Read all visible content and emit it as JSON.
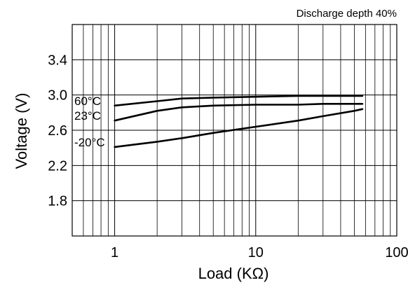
{
  "chart_data": {
    "type": "line",
    "title": "",
    "annotation": "Discharge depth 40%",
    "xlabel": "Load (KΩ)",
    "ylabel": "Voltage (V)",
    "x_scale": "log",
    "xlim": [
      0.5,
      100
    ],
    "ylim": [
      1.4,
      3.8
    ],
    "x_ticks": [
      {
        "value": 1,
        "label": "1"
      },
      {
        "value": 10,
        "label": "10"
      },
      {
        "value": 100,
        "label": "100"
      }
    ],
    "y_ticks": [
      {
        "value": 1.8,
        "label": "1.8"
      },
      {
        "value": 2.2,
        "label": "2.2"
      },
      {
        "value": 2.6,
        "label": "2.6"
      },
      {
        "value": 3.0,
        "label": "3.0"
      },
      {
        "value": 3.4,
        "label": "3.4"
      }
    ],
    "grid": true,
    "legend": "none",
    "series": [
      {
        "name": "60°C",
        "x": [
          1,
          2,
          3,
          5,
          10,
          20,
          30,
          50,
          57
        ],
        "y": [
          2.88,
          2.93,
          2.96,
          2.97,
          2.98,
          2.99,
          2.99,
          2.99,
          2.99
        ]
      },
      {
        "name": "23°C",
        "x": [
          1,
          2,
          3,
          5,
          10,
          20,
          30,
          50,
          57
        ],
        "y": [
          2.71,
          2.82,
          2.86,
          2.88,
          2.89,
          2.89,
          2.9,
          2.9,
          2.9
        ]
      },
      {
        "name": "-20°C",
        "x": [
          1,
          2,
          3,
          5,
          10,
          20,
          30,
          50,
          57
        ],
        "y": [
          2.41,
          2.47,
          2.51,
          2.57,
          2.64,
          2.71,
          2.76,
          2.82,
          2.84
        ]
      }
    ]
  }
}
